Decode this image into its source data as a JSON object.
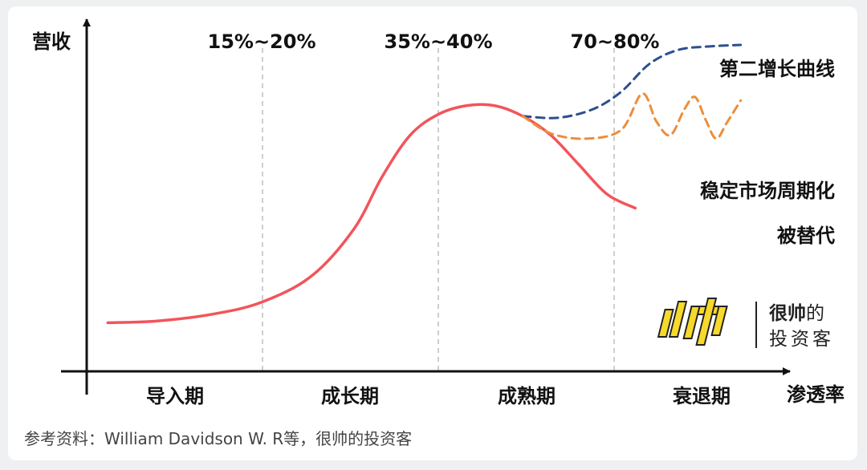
{
  "chart_data": {
    "type": "line",
    "ylabel": "营收",
    "xlabel": "渗透率",
    "stages": [
      "导入期",
      "成长期",
      "成熟期",
      "衰退期"
    ],
    "boundary_labels": [
      "15%~20%",
      "35%~40%",
      "70~80%"
    ],
    "x_domain": [
      0,
      100
    ],
    "y_domain": [
      0,
      100
    ],
    "series": [
      {
        "name": "被替代",
        "color": "#f2545b",
        "style": "solid",
        "points": [
          [
            3,
            14
          ],
          [
            10,
            14.5
          ],
          [
            18,
            16.5
          ],
          [
            25,
            20
          ],
          [
            32,
            27.5
          ],
          [
            38,
            41
          ],
          [
            42,
            56
          ],
          [
            46,
            68
          ],
          [
            50,
            74
          ],
          [
            54,
            76.5
          ],
          [
            58,
            76.5
          ],
          [
            62,
            73.5
          ],
          [
            66,
            68
          ],
          [
            70,
            59.5
          ],
          [
            74,
            51
          ],
          [
            78,
            47
          ]
        ]
      },
      {
        "name": "第二增长曲线",
        "color": "#2c4f8f",
        "style": "dashed",
        "points": [
          [
            62,
            73.5
          ],
          [
            67,
            73
          ],
          [
            72,
            75.5
          ],
          [
            76,
            80.5
          ],
          [
            80,
            88.5
          ],
          [
            84,
            92.5
          ],
          [
            88,
            93.5
          ],
          [
            93,
            94
          ]
        ]
      },
      {
        "name": "稳定市场周期化",
        "color": "#ee8d3a",
        "style": "dashed",
        "points": [
          [
            62,
            73.5
          ],
          [
            66,
            68.5
          ],
          [
            71,
            67
          ],
          [
            76,
            69.5
          ],
          [
            79,
            80
          ],
          [
            81,
            72
          ],
          [
            83,
            68
          ],
          [
            85,
            75.5
          ],
          [
            86.5,
            79
          ],
          [
            88,
            72.5
          ],
          [
            89.5,
            67
          ],
          [
            91,
            71.5
          ],
          [
            93,
            78
          ]
        ]
      }
    ]
  },
  "source_note": "参考资料：William Davidson W. R等，很帅的投资客",
  "logo": {
    "line1_bold": "很帅",
    "line1_rest": "的",
    "line2": "投资客"
  },
  "colors": {
    "axis": "#111111",
    "gridline": "#bdbdbd",
    "logo_yellow": "#f6d92a"
  }
}
